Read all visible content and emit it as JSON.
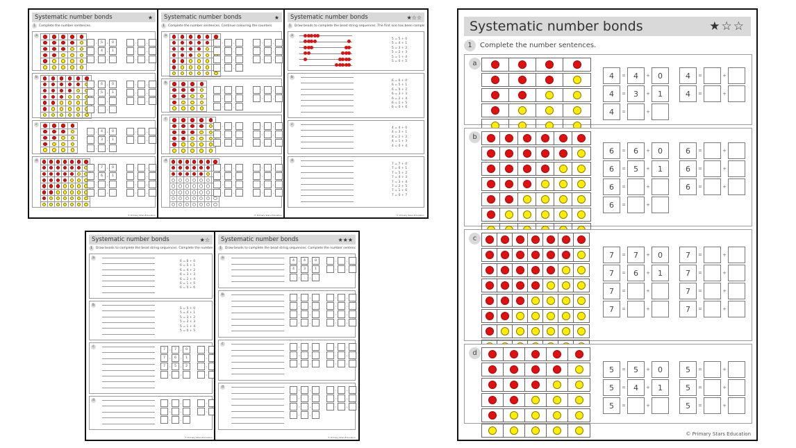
{
  "title": "Systematic number bonds",
  "copyright": "© Primary Stars Education",
  "colors": {
    "red_counter": "#e01010",
    "yellow_counter": "#ffee00",
    "header_bg": "#d9d9d9"
  },
  "main_sheet": {
    "title": "Systematic number bonds",
    "stars": "★☆☆",
    "question_number": "1",
    "instruction": "Complete the number sentences.",
    "parts": [
      {
        "label": "a",
        "total": 4,
        "rows": 5,
        "cols": 4,
        "left_equations": [
          [
            "4",
            "4",
            "0"
          ],
          [
            "4",
            "3",
            "1"
          ],
          [
            "4",
            "",
            ""
          ]
        ],
        "right_equations": [
          [
            "4",
            "",
            ""
          ],
          [
            "4",
            "",
            ""
          ]
        ]
      },
      {
        "label": "b",
        "total": 6,
        "rows": 7,
        "cols": 6,
        "left_equations": [
          [
            "6",
            "6",
            "0"
          ],
          [
            "6",
            "5",
            "1"
          ],
          [
            "6",
            "",
            ""
          ],
          [
            "6",
            "",
            ""
          ]
        ],
        "right_equations": [
          [
            "6",
            "",
            ""
          ],
          [
            "6",
            "",
            ""
          ],
          [
            "6",
            "",
            ""
          ]
        ]
      },
      {
        "label": "c",
        "total": 7,
        "rows": 8,
        "cols": 7,
        "left_equations": [
          [
            "7",
            "7",
            "0"
          ],
          [
            "7",
            "6",
            "1"
          ],
          [
            "7",
            "",
            ""
          ],
          [
            "7",
            "",
            ""
          ]
        ],
        "right_equations": [
          [
            "7",
            "",
            ""
          ],
          [
            "7",
            "",
            ""
          ],
          [
            "7",
            "",
            ""
          ],
          [
            "7",
            "",
            ""
          ]
        ]
      },
      {
        "label": "d",
        "total": 5,
        "rows": 6,
        "cols": 5,
        "left_equations": [
          [
            "5",
            "5",
            "0"
          ],
          [
            "5",
            "4",
            "1"
          ],
          [
            "5",
            "",
            ""
          ]
        ],
        "right_equations": [
          [
            "5",
            "",
            ""
          ],
          [
            "5",
            "",
            ""
          ],
          [
            "5",
            "",
            ""
          ]
        ]
      }
    ],
    "equals": "=",
    "plus": "+",
    "copyright": "© Primary Stars Education"
  },
  "thumbnails": [
    {
      "id": "t1",
      "title": "Systematic number bonds",
      "stars": "★",
      "instruction": "Complete the number sentences.",
      "parts": [
        {
          "label": "a",
          "type": "counters",
          "n": 5,
          "rows": 6,
          "eq": [
            [
              "",
              "5",
              "0"
            ],
            [
              "",
              "4",
              "1"
            ],
            [
              "",
              "",
              ""
            ]
          ],
          "eq2": 3
        },
        {
          "label": "b",
          "type": "counters",
          "n": 6,
          "rows": 7,
          "eq": [
            [
              "",
              "6",
              "0"
            ],
            [
              "",
              "5",
              "1"
            ],
            [
              "",
              "",
              ""
            ],
            [
              "",
              "",
              ""
            ]
          ],
          "eq2": 3
        },
        {
          "label": "c",
          "type": "counters",
          "n": 4,
          "rows": 5,
          "eq": [
            [
              "",
              "4",
              "0"
            ],
            [
              "",
              "3",
              "1"
            ],
            [
              "",
              "",
              ""
            ]
          ],
          "eq2": 2
        },
        {
          "label": "d",
          "type": "counters",
          "n": 7,
          "rows": 8,
          "eq": [
            [
              "",
              "7",
              "0"
            ],
            [
              "",
              "6",
              "1"
            ],
            [
              "",
              "",
              ""
            ],
            [
              "",
              "",
              ""
            ]
          ],
          "eq2": 4
        }
      ]
    },
    {
      "id": "t2",
      "title": "Systematic number bonds",
      "stars": "★",
      "instruction": "Complete the number sentences. Continue colouring the counters.",
      "parts": [
        {
          "label": "a",
          "type": "counters",
          "n": 6,
          "rows": 7,
          "eq": [
            [
              "",
              "",
              ""
            ],
            [
              "",
              "",
              ""
            ],
            [
              "",
              "",
              ""
            ],
            [
              "",
              "",
              ""
            ]
          ],
          "eq2": 3
        },
        {
          "label": "b",
          "type": "counters",
          "n": 4,
          "rows": 5,
          "eq": [
            [
              "",
              "",
              ""
            ],
            [
              "",
              "",
              ""
            ],
            [
              "",
              "",
              ""
            ]
          ],
          "eq2": 2
        },
        {
          "label": "c",
          "type": "counters",
          "n": 5,
          "rows": 6,
          "eq": [
            [
              "",
              "",
              ""
            ],
            [
              "",
              "",
              ""
            ],
            [
              "",
              "",
              ""
            ]
          ],
          "eq2": 3
        },
        {
          "label": "d",
          "type": "counters-partial",
          "n": 7,
          "rows": 8,
          "filled": 3,
          "eq": [
            [
              "",
              "",
              ""
            ],
            [
              "",
              "",
              ""
            ],
            [
              "",
              "",
              ""
            ],
            [
              "",
              "",
              ""
            ]
          ],
          "eq2": 4
        }
      ]
    },
    {
      "id": "t3",
      "title": "Systematic number bonds",
      "stars": "★☆☆",
      "instruction": "Draw beads to complete the bead string sequences. The first one has been completed.",
      "parts": [
        {
          "label": "a",
          "type": "beads",
          "n": 5,
          "facts": [
            "5 = 5 + 0",
            "5 = 4 + 1",
            "5 = 3 + 2",
            "5 = 2 + 3",
            "5 = 1 + 4",
            "5 = 0 + 5"
          ]
        },
        {
          "label": "b",
          "type": "lines",
          "lines": 7,
          "facts": [
            "6 = 6 + 0",
            "6 = 5 + 1",
            "6 = 4 + 2",
            "6 = 3 + 3",
            "6 = 2 + 4",
            "6 = 1 + 5",
            "6 = 0 + 6"
          ]
        },
        {
          "label": "c",
          "type": "lines",
          "lines": 5,
          "facts": [
            "4 = 4 + 0",
            "4 = 3 + 1",
            "4 = 2 + 2",
            "4 = 1 + 3",
            "4 = 0 + 4"
          ]
        },
        {
          "label": "d",
          "type": "lines",
          "lines": 8,
          "facts": [
            "7 = 7 + 0",
            "7 = 6 + 1",
            "7 = 5 + 2",
            "7 = 4 + 3",
            "7 = 3 + 4",
            "7 = 2 + 5",
            "7 = 1 + 6",
            "7 = 0 + 7"
          ]
        }
      ]
    },
    {
      "id": "t4",
      "title": "Systematic number bonds",
      "stars": "★☆",
      "instruction": "Draw beads to complete the bead string sequences. Complete the number sentences.",
      "parts": [
        {
          "label": "a",
          "type": "lines",
          "lines": 7,
          "facts": [
            "6 = 6 + 0",
            "6 = 5 + 1",
            "6 = 4 + 2",
            "6 = 3 + 3",
            "6 = 2 + 4",
            "6 = 1 + 5",
            "6 = 0 + 6"
          ]
        },
        {
          "label": "b",
          "type": "lines",
          "lines": 6,
          "facts": [
            "5 = 5 + 0",
            "5 = 4 + 1",
            "5 = 3 + 2",
            "5 = 2 + 3",
            "5 = 1 + 4",
            "5 = 0 + 5"
          ]
        },
        {
          "label": "c",
          "type": "lines-eq",
          "lines": 8,
          "eq": [
            [
              "7",
              "7",
              "0"
            ],
            [
              "7",
              "6",
              "1"
            ],
            [
              "7",
              "5",
              "2"
            ],
            [
              "",
              "",
              ""
            ]
          ],
          "eq2": 4
        },
        {
          "label": "d",
          "type": "lines-eq",
          "lines": 5,
          "eq": [
            [
              "",
              "",
              ""
            ],
            [
              "",
              "",
              ""
            ],
            [
              "",
              "",
              ""
            ]
          ],
          "eq2": 2
        }
      ]
    },
    {
      "id": "t5",
      "title": "Systematic number bonds",
      "stars": "★★★",
      "instruction": "Draw beads to complete the bead string sequences. Complete the number sentences.",
      "parts": [
        {
          "label": "a",
          "type": "lines-eq",
          "lines": 5,
          "eq": [
            [
              "4",
              "4",
              "0"
            ],
            [
              "4",
              "3",
              "1"
            ],
            [
              "",
              "",
              ""
            ]
          ],
          "eq2": 2
        },
        {
          "label": "b",
          "type": "lines-eq",
          "lines": 7,
          "eq": [
            [
              "",
              "",
              ""
            ],
            [
              "",
              "",
              ""
            ],
            [
              "",
              "",
              ""
            ],
            [
              "",
              "",
              ""
            ]
          ],
          "eq2": 4
        },
        {
          "label": "c",
          "type": "lines-eq",
          "lines": 6,
          "eq": [
            [
              "",
              "",
              ""
            ],
            [
              "",
              "",
              ""
            ],
            [
              "",
              "",
              ""
            ]
          ],
          "eq2": 3
        },
        {
          "label": "d",
          "type": "lines-eq",
          "lines": 7,
          "eq": [
            [
              "",
              "",
              ""
            ],
            [
              "",
              "",
              ""
            ],
            [
              "",
              "",
              ""
            ],
            [
              "",
              "",
              ""
            ]
          ],
          "eq2": 3
        }
      ]
    }
  ]
}
